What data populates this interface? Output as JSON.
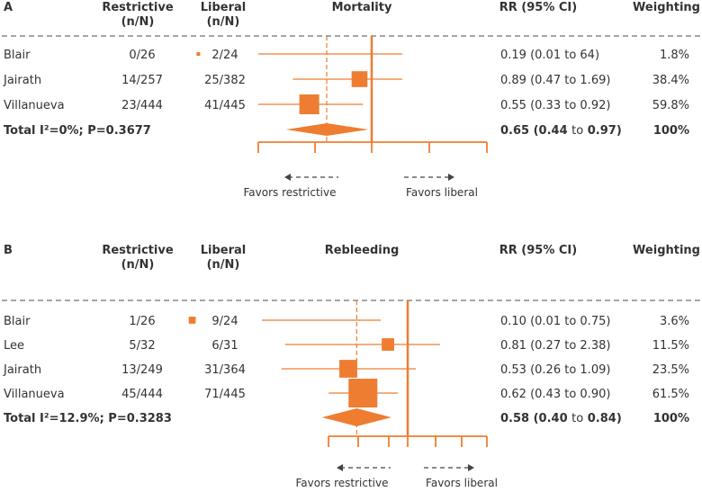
{
  "chart_data": [
    {
      "type": "forest",
      "panel_label": "A",
      "title": "Mortality",
      "columns": {
        "restrictive": "Restrictive",
        "restrictive_unit": "(n/N)",
        "liberal": "Liberal",
        "liberal_unit": "(n/N)",
        "rr": "RR (95% CI)",
        "weighting": "Weighting"
      },
      "studies": [
        {
          "name": "Blair",
          "restrictive": "0/26",
          "liberal": "2/24",
          "rr": 0.19,
          "lo": 0.01,
          "hi": 64,
          "rr_text": "0.19 (0.01 to 64)",
          "weighting": "1.8%",
          "weight": 1.8
        },
        {
          "name": "Jairath",
          "restrictive": "14/257",
          "liberal": "25/382",
          "rr": 0.89,
          "lo": 0.47,
          "hi": 1.69,
          "rr_text": "0.89 (0.47 to 1.69)",
          "weighting": "38.4%",
          "weight": 38.4
        },
        {
          "name": "Villanueva",
          "restrictive": "23/444",
          "liberal": "41/445",
          "rr": 0.55,
          "lo": 0.33,
          "hi": 0.92,
          "rr_text": "0.55 (0.33 to 0.92)",
          "weighting": "59.8%",
          "weight": 59.8
        }
      ],
      "total": {
        "label": "Total I²=0%; P=0.3677",
        "rr": 0.65,
        "lo": 0.44,
        "hi": 0.97,
        "rr_text_pre": "0.65 (0.44 ",
        "rr_text_to": "to",
        "rr_text_post": " 0.97)",
        "weighting": "100%"
      },
      "favors_left": "Favors restrictive",
      "favors_right": "Favors liberal",
      "xscale": "log"
    },
    {
      "type": "forest",
      "panel_label": "B",
      "title": "Rebleeding",
      "columns": {
        "restrictive": "Restrictive",
        "restrictive_unit": "(n/N)",
        "liberal": "Liberal",
        "liberal_unit": "(n/N)",
        "rr": "RR (95% CI)",
        "weighting": "Weighting"
      },
      "studies": [
        {
          "name": "Blair",
          "restrictive": "1/26",
          "liberal": "9/24",
          "rr": 0.1,
          "lo": 0.01,
          "hi": 0.75,
          "rr_text": "0.10 (0.01 to 0.75)",
          "weighting": "3.6%",
          "weight": 3.6
        },
        {
          "name": "Lee",
          "restrictive": "5/32",
          "liberal": "6/31",
          "rr": 0.81,
          "lo": 0.27,
          "hi": 2.38,
          "rr_text": "0.81 (0.27 to 2.38)",
          "weighting": "11.5%",
          "weight": 11.5
        },
        {
          "name": "Jairath",
          "restrictive": "13/249",
          "liberal": "31/364",
          "rr": 0.53,
          "lo": 0.26,
          "hi": 1.09,
          "rr_text": "0.53 (0.26 to 1.09)",
          "weighting": "23.5%",
          "weight": 23.5
        },
        {
          "name": "Villanueva",
          "restrictive": "45/444",
          "liberal": "71/445",
          "rr": 0.62,
          "lo": 0.43,
          "hi": 0.9,
          "rr_text": "0.62 (0.43 to 0.90)",
          "weighting": "61.5%",
          "weight": 61.5
        }
      ],
      "total": {
        "label": "Total I²=12.9%; P=0.3283",
        "rr": 0.58,
        "lo": 0.4,
        "hi": 0.84,
        "rr_text_pre": "0.58 (0.40 ",
        "rr_text_to": "to",
        "rr_text_post": " 0.84)",
        "weighting": "100%"
      },
      "favors_left": "Favors restrictive",
      "favors_right": "Favors liberal",
      "xscale": "log"
    }
  ],
  "colors": {
    "accent": "#ee7d31",
    "text": "#333333",
    "dash": "#888888"
  }
}
